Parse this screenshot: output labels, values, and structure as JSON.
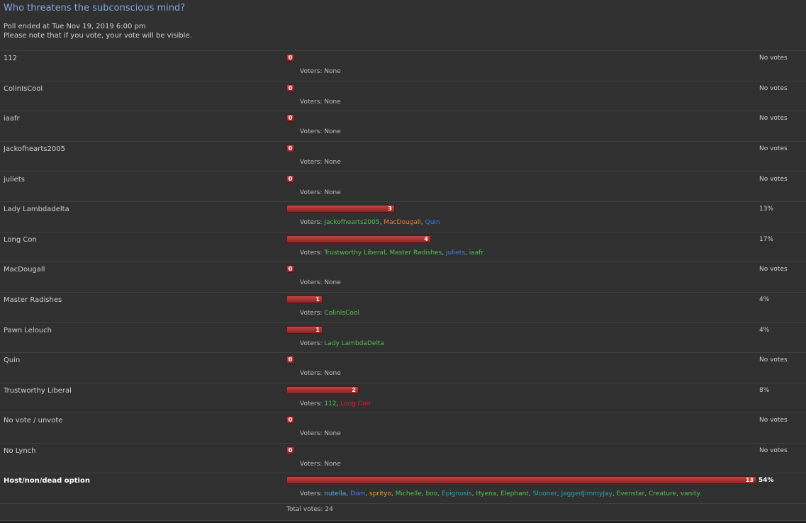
{
  "poll": {
    "title": "Who threatens the subconscious mind?",
    "ended": "Poll ended at Tue Nov 19, 2019 6:00 pm",
    "note": "Please note that if you vote, your vote will be visible.",
    "voters_prefix": "Voters: ",
    "total": "Total votes: 24",
    "max_votes": 13,
    "options": [
      {
        "label": "112",
        "count": 0,
        "pct": "No votes",
        "voters": []
      },
      {
        "label": "ColinIsCool",
        "count": 0,
        "pct": "No votes",
        "voters": []
      },
      {
        "label": "iaafr",
        "count": 0,
        "pct": "No votes",
        "voters": []
      },
      {
        "label": "Jackofhearts2005",
        "count": 0,
        "pct": "No votes",
        "voters": []
      },
      {
        "label": "juliets",
        "count": 0,
        "pct": "No votes",
        "voters": []
      },
      {
        "label": "Lady Lambdadelta",
        "count": 3,
        "pct": "13%",
        "voters": [
          {
            "name": "Jackofhearts2005",
            "color": "#52c252"
          },
          {
            "name": "MacDougall",
            "color": "#f07a3a"
          },
          {
            "name": "Quin",
            "color": "#3f7ff0"
          }
        ]
      },
      {
        "label": "Long Con",
        "count": 4,
        "pct": "17%",
        "voters": [
          {
            "name": "Trustworthy Liberal",
            "color": "#52c252"
          },
          {
            "name": "Master Radishes",
            "color": "#52c252"
          },
          {
            "name": "juliets",
            "color": "#3f7ff0"
          },
          {
            "name": "iaafr",
            "color": "#52c252"
          }
        ]
      },
      {
        "label": "MacDougall",
        "count": 0,
        "pct": "No votes",
        "voters": []
      },
      {
        "label": "Master Radishes",
        "count": 1,
        "pct": "4%",
        "voters": [
          {
            "name": "ColinIsCool",
            "color": "#52c252"
          }
        ]
      },
      {
        "label": "Pawn Lelouch",
        "count": 1,
        "pct": "4%",
        "voters": [
          {
            "name": "Lady LambdaDelta",
            "color": "#52c252"
          }
        ]
      },
      {
        "label": "Quin",
        "count": 0,
        "pct": "No votes",
        "voters": []
      },
      {
        "label": "Trustworthy Liberal",
        "count": 2,
        "pct": "8%",
        "voters": [
          {
            "name": "112",
            "color": "#52c252"
          },
          {
            "name": "Long Con",
            "color": "#e02020"
          }
        ]
      },
      {
        "label": "No vote / unvote",
        "count": 0,
        "pct": "No votes",
        "voters": []
      },
      {
        "label": "No Lynch",
        "count": 0,
        "pct": "No votes",
        "voters": []
      },
      {
        "label": "Host/non/dead option",
        "count": 13,
        "pct": "54%",
        "bold": true,
        "voters": [
          {
            "name": "nutella",
            "color": "#4fb6f0"
          },
          {
            "name": "Dom",
            "color": "#3f7ff0"
          },
          {
            "name": "sprityo",
            "color": "#f0a030"
          },
          {
            "name": "Michelle",
            "color": "#52c252"
          },
          {
            "name": "boo",
            "color": "#52c252"
          },
          {
            "name": "Epignosis",
            "color": "#2aa3a3"
          },
          {
            "name": "Hyena",
            "color": "#52c252"
          },
          {
            "name": "Elephant",
            "color": "#52c252"
          },
          {
            "name": "Slooner",
            "color": "#2aa3a3"
          },
          {
            "name": "JaggedJimmyJay",
            "color": "#2aa3a3"
          },
          {
            "name": "Evenstar",
            "color": "#52c252"
          },
          {
            "name": "Creature",
            "color": "#52c252"
          },
          {
            "name": "vanity.",
            "color": "#52c252"
          }
        ]
      }
    ]
  }
}
